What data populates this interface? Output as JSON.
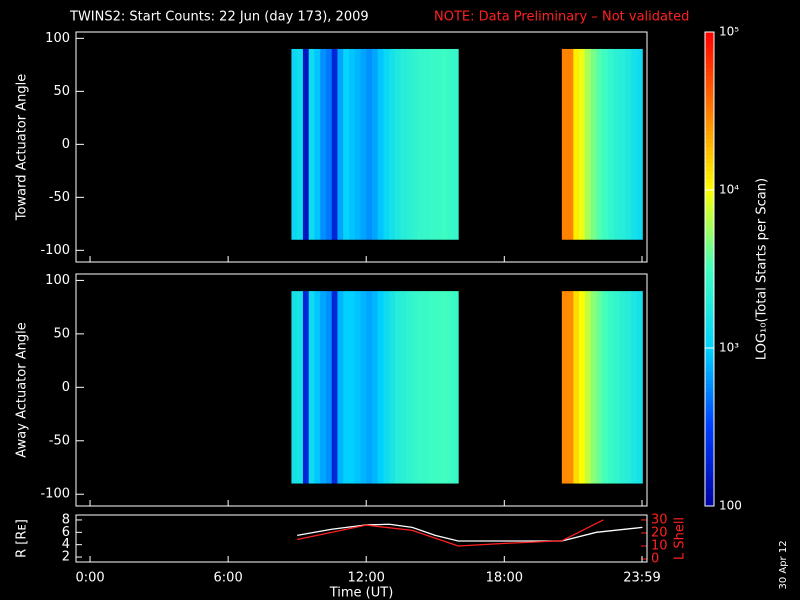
{
  "header": {
    "title": "TWINS2: Start Counts: 22 Jun (day 173), 2009",
    "note": "NOTE: Data Preliminary – Not validated",
    "date_stamp": "30 Apr 12"
  },
  "chart_data": [
    {
      "type": "heatmap",
      "ylabel": "Toward Actuator Angle",
      "xlim": [
        -0.61,
        24.2
      ],
      "ylim": [
        -111,
        106
      ],
      "yticks": [
        -100,
        -50,
        0,
        50,
        100
      ],
      "angle_range": [
        -90,
        90
      ],
      "time_bins": [
        8.75,
        9,
        9.25,
        9.5,
        9.75,
        10,
        10.25,
        10.5,
        10.75,
        11,
        11.25,
        11.5,
        11.75,
        12,
        12.25,
        12.5,
        12.75,
        13,
        13.25,
        13.5,
        13.75,
        14,
        14.25,
        14.5,
        14.75,
        15,
        15.25,
        15.5,
        15.75,
        16,
        16.25,
        16.5,
        16.75,
        17,
        17.25,
        17.5,
        17.75,
        18,
        18.25,
        18.5,
        18.75,
        19,
        19.25,
        19.5,
        19.75,
        20,
        20.25,
        20.5,
        20.75,
        21,
        21.25,
        21.5,
        21.75,
        22,
        22.25,
        22.5,
        22.75,
        23,
        23.25,
        23.5,
        23.75,
        24
      ],
      "values": [
        1200,
        1400,
        150,
        1300,
        900,
        600,
        500,
        200,
        700,
        1100,
        900,
        800,
        700,
        600,
        700,
        900,
        1200,
        1500,
        1800,
        2000,
        2200,
        2400,
        2600,
        2600,
        2800,
        2800,
        3000,
        2800,
        2600,
        null,
        null,
        null,
        null,
        null,
        null,
        null,
        null,
        null,
        null,
        null,
        null,
        null,
        null,
        null,
        null,
        null,
        null,
        30000,
        30000,
        12000,
        9000,
        6000,
        4500,
        3500,
        3000,
        2500,
        2200,
        2000,
        1800,
        1500,
        1300
      ],
      "colorbar": {
        "label": "LOG₁₀(Total Starts per Scan)",
        "lim": [
          100,
          100000
        ],
        "log": true,
        "ticks": [
          {
            "value": 100,
            "label": "100"
          },
          {
            "value": 1000,
            "label": "10³"
          },
          {
            "value": 10000,
            "label": "10⁴"
          },
          {
            "value": 100000,
            "label": "10⁵"
          }
        ]
      }
    },
    {
      "type": "heatmap",
      "ylabel": "Away Actuator Angle",
      "xlim": [
        -0.61,
        24.2
      ],
      "ylim": [
        -111,
        106
      ],
      "yticks": [
        -100,
        -50,
        0,
        50,
        100
      ],
      "angle_range": [
        -90,
        90
      ],
      "values": [
        1500,
        1600,
        200,
        1300,
        900,
        700,
        600,
        200,
        800,
        1000,
        1000,
        900,
        800,
        700,
        800,
        1000,
        1300,
        1600,
        2000,
        2200,
        2400,
        2600,
        2800,
        2800,
        3000,
        3000,
        3200,
        3000,
        2800,
        null,
        null,
        null,
        null,
        null,
        null,
        null,
        null,
        null,
        null,
        null,
        null,
        null,
        null,
        null,
        null,
        null,
        null,
        28000,
        28000,
        14000,
        10000,
        7000,
        5000,
        4000,
        3200,
        2800,
        2500,
        2200,
        2000,
        1700,
        1500
      ]
    },
    {
      "type": "line",
      "xlabel": "Time (UT)",
      "ylabel": "R [Rᴇ]",
      "y2label": "L Shell",
      "xlim": [
        -0.61,
        24.2
      ],
      "xticks": [
        {
          "value": 0,
          "label": "0:00"
        },
        {
          "value": 6,
          "label": "6:00"
        },
        {
          "value": 12,
          "label": "12:00"
        },
        {
          "value": 18,
          "label": "18:00"
        },
        {
          "value": 23.983,
          "label": "23:59"
        }
      ],
      "ylim": [
        1.2,
        8.8
      ],
      "yticks": [
        2,
        4,
        6,
        8
      ],
      "y2lim": [
        -2.3,
        33.8
      ],
      "y2ticks": [
        0,
        10,
        20,
        30
      ],
      "series": [
        {
          "name": "R",
          "color": "#ffffff",
          "x": [
            9,
            10.5,
            12,
            13,
            14,
            15,
            16,
            18,
            20.5,
            22,
            24
          ],
          "values": [
            5.5,
            6.5,
            7.2,
            7.3,
            6.8,
            5.5,
            4.6,
            4.6,
            4.6,
            6,
            6.8
          ]
        },
        {
          "name": "L Shell",
          "color": "#ff2020",
          "axis": "y2",
          "x": [
            9,
            12,
            14,
            16,
            18,
            20.5,
            22.3
          ],
          "values": [
            15,
            26,
            22,
            10,
            12,
            14,
            30
          ]
        }
      ]
    }
  ]
}
